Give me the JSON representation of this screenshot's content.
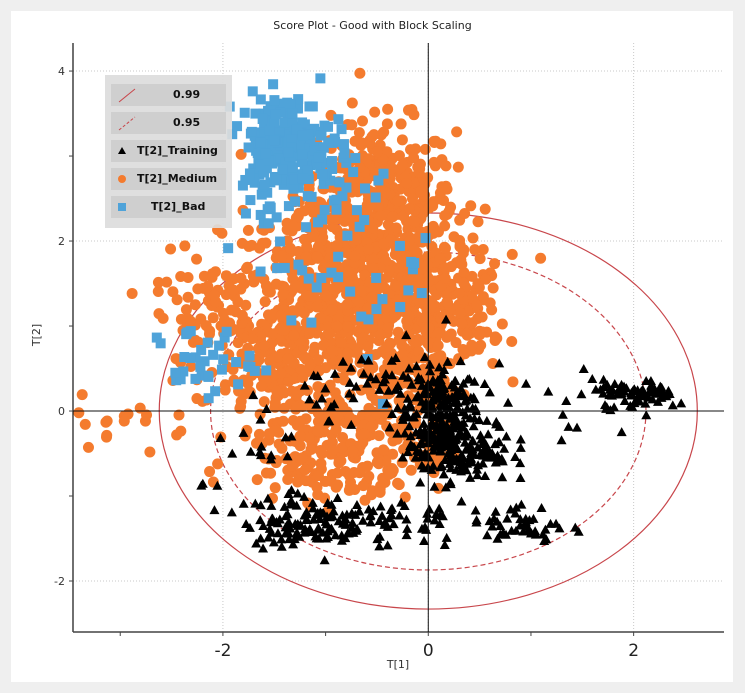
{
  "chart_data": {
    "type": "scatter",
    "title": "Score Plot - Good with Block Scaling",
    "xlabel": "T[1]",
    "ylabel": "T[2]",
    "xlim": [
      -3.46,
      2.88
    ],
    "ylim": [
      -2.6,
      4.33
    ],
    "xticks": [
      -2,
      0,
      2
    ],
    "yticks": [
      4,
      2,
      0,
      -2
    ],
    "xtick_labels": [
      "-2",
      "0",
      "2"
    ],
    "ytick_labels": [
      "4",
      "2",
      "0",
      "-2"
    ],
    "grid": true,
    "legend_position": "top-left",
    "colors": {
      "training": "#000000",
      "medium": "#F47B2E",
      "bad": "#4FA3D9",
      "ellipse": "#C8464B"
    },
    "ellipses": [
      {
        "name": "0.99",
        "style": "solid",
        "cx": 0,
        "cy": 0,
        "rx": 2.62,
        "ry": 2.33
      },
      {
        "name": "0.95",
        "style": "dashed",
        "cx": 0,
        "cy": 0,
        "rx": 2.12,
        "ry": 1.87
      }
    ],
    "legend": [
      "0.99",
      "0.95",
      "T[2]_Training",
      "T[2]_Medium",
      "T[2]_Bad"
    ],
    "series": [
      {
        "name": "T[2]_Medium",
        "marker": "circle",
        "clusters": [
          {
            "cx": -0.5,
            "cy": 2.5,
            "sx": 0.38,
            "sy": 0.45,
            "n": 380
          },
          {
            "cx": -0.8,
            "cy": 1.4,
            "sx": 0.6,
            "sy": 0.5,
            "n": 520
          },
          {
            "cx": -0.1,
            "cy": 1.3,
            "sx": 0.35,
            "sy": 0.45,
            "n": 260
          },
          {
            "cx": -1.3,
            "cy": 0.6,
            "sx": 0.45,
            "sy": 0.4,
            "n": 200
          },
          {
            "cx": -1.2,
            "cy": -0.3,
            "sx": 0.35,
            "sy": 0.35,
            "n": 150
          },
          {
            "cx": -0.6,
            "cy": -0.6,
            "sx": 0.25,
            "sy": 0.3,
            "n": 90
          },
          {
            "cx": -0.1,
            "cy": 0.3,
            "sx": 0.2,
            "sy": 0.25,
            "n": 60
          },
          {
            "cx": 0.05,
            "cy": -0.45,
            "sx": 0.1,
            "sy": 0.15,
            "n": 25
          },
          {
            "cx": -2.1,
            "cy": 1.2,
            "sx": 0.3,
            "sy": 0.35,
            "n": 60
          },
          {
            "cx": -2.8,
            "cy": -0.1,
            "sx": 0.3,
            "sy": 0.15,
            "n": 18
          },
          {
            "cx": 0.4,
            "cy": 1.1,
            "sx": 0.15,
            "sy": 0.35,
            "n": 40
          }
        ]
      },
      {
        "name": "T[2]_Bad",
        "marker": "square",
        "clusters": [
          {
            "cx": -1.4,
            "cy": 3.15,
            "sx": 0.22,
            "sy": 0.28,
            "n": 220
          },
          {
            "cx": -1.0,
            "cy": 2.7,
            "sx": 0.3,
            "sy": 0.3,
            "n": 40
          },
          {
            "cx": -2.2,
            "cy": 0.6,
            "sx": 0.25,
            "sy": 0.2,
            "n": 35
          },
          {
            "cx": -1.5,
            "cy": 1.8,
            "sx": 0.3,
            "sy": 0.35,
            "n": 18
          },
          {
            "cx": -0.5,
            "cy": 1.6,
            "sx": 0.35,
            "sy": 0.6,
            "n": 25
          }
        ]
      },
      {
        "name": "T[2]_Training",
        "marker": "triangle",
        "clusters": [
          {
            "cx": 0.1,
            "cy": 0.0,
            "sx": 0.2,
            "sy": 0.3,
            "n": 180
          },
          {
            "cx": 0.3,
            "cy": -0.45,
            "sx": 0.25,
            "sy": 0.2,
            "n": 140
          },
          {
            "cx": -1.2,
            "cy": -1.3,
            "sx": 0.3,
            "sy": 0.15,
            "n": 110
          },
          {
            "cx": -0.4,
            "cy": -1.3,
            "sx": 0.35,
            "sy": 0.15,
            "n": 50
          },
          {
            "cx": 0.95,
            "cy": -1.35,
            "sx": 0.2,
            "sy": 0.12,
            "n": 45
          },
          {
            "cx": 2.0,
            "cy": 0.2,
            "sx": 0.2,
            "sy": 0.08,
            "n": 70
          },
          {
            "cx": 1.2,
            "cy": 0.0,
            "sx": 0.5,
            "sy": 0.3,
            "n": 22
          },
          {
            "cx": -0.5,
            "cy": 0.35,
            "sx": 0.35,
            "sy": 0.2,
            "n": 45
          },
          {
            "cx": -1.6,
            "cy": -0.6,
            "sx": 0.3,
            "sy": 0.3,
            "n": 20
          }
        ]
      }
    ]
  }
}
